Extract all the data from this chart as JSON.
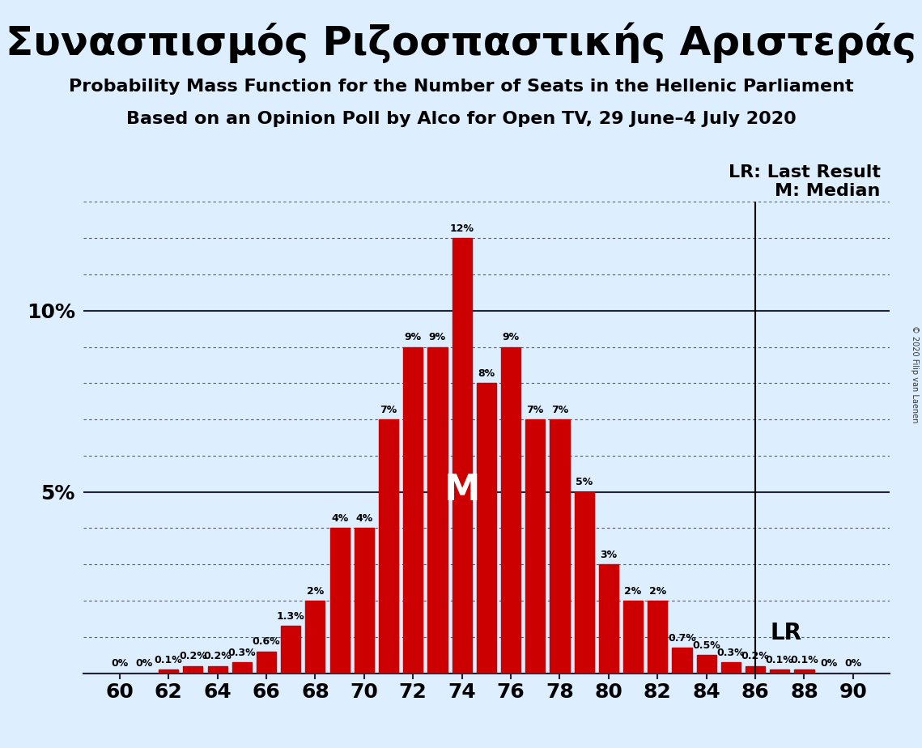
{
  "title": "Συνασπισμός Ριζοσπαστικής Αριστεράς",
  "subtitle1": "Probability Mass Function for the Number of Seats in the Hellenic Parliament",
  "subtitle2": "Based on an Opinion Poll by Alco for Open TV, 29 June–4 July 2020",
  "copyright": "© 2020 Filip van Laenen",
  "seats": [
    60,
    61,
    62,
    63,
    64,
    65,
    66,
    67,
    68,
    69,
    70,
    71,
    72,
    73,
    74,
    75,
    76,
    77,
    78,
    79,
    80,
    81,
    82,
    83,
    84,
    85,
    86,
    87,
    88,
    89,
    90
  ],
  "probabilities": [
    0.0,
    0.0,
    0.1,
    0.2,
    0.2,
    0.3,
    0.6,
    1.3,
    2.0,
    4.0,
    4.0,
    7.0,
    9.0,
    9.0,
    12.0,
    8.0,
    9.0,
    7.0,
    7.0,
    5.0,
    3.0,
    2.0,
    2.0,
    0.7,
    0.5,
    0.3,
    0.2,
    0.1,
    0.1,
    0.0,
    0.0
  ],
  "bar_color": "#cc0000",
  "background_color": "#ddeeff",
  "median": 74,
  "last_result": 86,
  "ylim_max": 13.0,
  "legend_lr": "LR: Last Result",
  "legend_m": "M: Median",
  "legend_lr_short": "LR",
  "legend_m_short": "M",
  "bar_labels": {
    "60": "0%",
    "61": "0%",
    "62": "0.1%",
    "63": "0.2%",
    "64": "0.2%",
    "65": "0.3%",
    "66": "0.6%",
    "67": "1.3%",
    "68": "2%",
    "69": "4%",
    "70": "4%",
    "71": "7%",
    "72": "9%",
    "73": "9%",
    "74": "12%",
    "75": "8%",
    "76": "9%",
    "77": "7%",
    "78": "7%",
    "79": "5%",
    "80": "3%",
    "81": "2%",
    "82": "2%",
    "83": "0.7%",
    "84": "0.5%",
    "85": "0.3%",
    "86": "0.2%",
    "87": "0.1%",
    "88": "0.1%",
    "89": "0%",
    "90": "0%"
  },
  "title_fontsize": 36,
  "subtitle_fontsize": 16,
  "tick_fontsize": 18,
  "bar_label_fontsize": 9,
  "legend_fontsize": 16,
  "median_fontsize": 32,
  "lr_fontsize": 20
}
